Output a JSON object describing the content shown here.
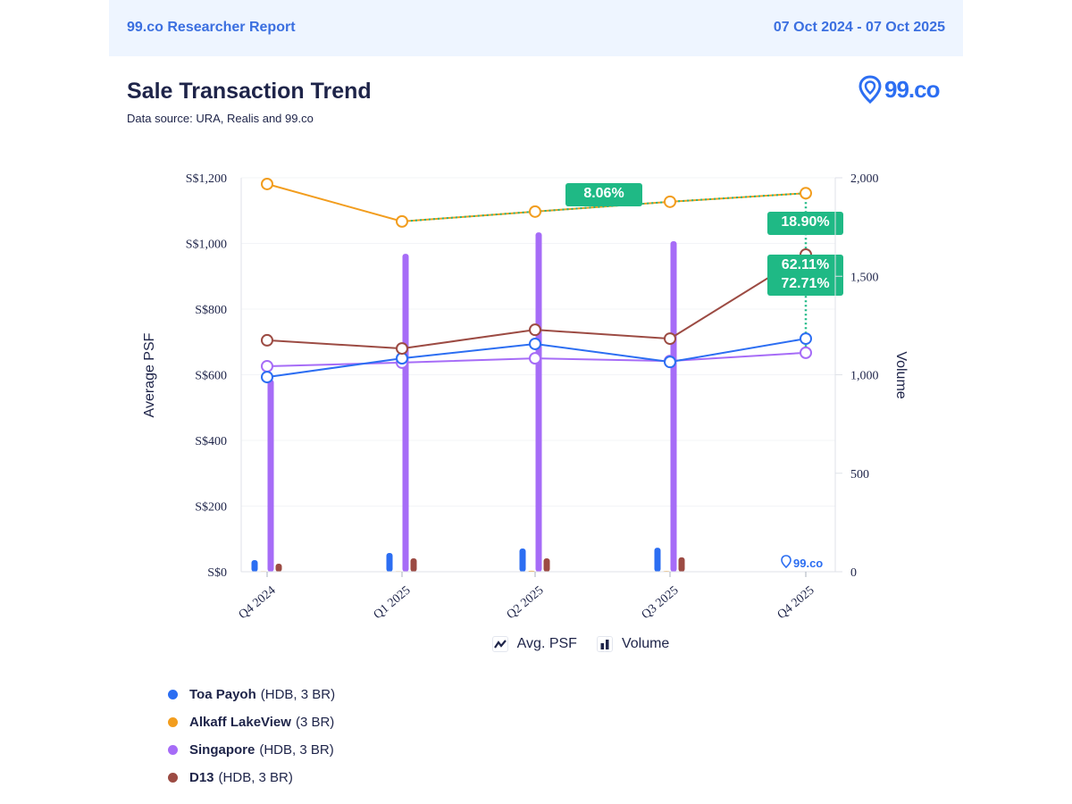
{
  "header": {
    "report_label": "99.co Researcher Report",
    "date_range": "07 Oct 2024 - 07 Oct 2025"
  },
  "title": "Sale Transaction Trend",
  "subtitle": "Data source: URA, Realis and 99.co",
  "logo_text": "99.co",
  "watermark_text": "99.co",
  "mode_legend": [
    {
      "icon": "line-chart-icon",
      "label": "Avg. PSF"
    },
    {
      "icon": "bar-chart-icon",
      "label": "Volume"
    }
  ],
  "series_legend": [
    {
      "name": "Toa Payoh",
      "detail": "(HDB, 3 BR)",
      "color": "#2c6ef2"
    },
    {
      "name": "Alkaff LakeView",
      "detail": "(3 BR)",
      "color": "#f29d1e"
    },
    {
      "name": "Singapore",
      "detail": "(HDB, 3 BR)",
      "color": "#a66cf7"
    },
    {
      "name": "D13",
      "detail": "(HDB, 3 BR)",
      "color": "#9c4b43"
    }
  ],
  "chart_data": {
    "type": "line+bar",
    "title": "Sale Transaction Trend",
    "categories": [
      "Q4 2024",
      "Q1 2025",
      "Q2 2025",
      "Q3 2025",
      "Q4 2025"
    ],
    "ylabel": "Average PSF",
    "y2label": "Volume",
    "ylim": [
      0,
      1200
    ],
    "y2lim": [
      0,
      2000
    ],
    "yticks": [
      "S$0",
      "S$200",
      "S$400",
      "S$600",
      "S$800",
      "S$1,000",
      "S$1,200"
    ],
    "yticks_values": [
      0,
      200,
      400,
      600,
      800,
      1000,
      1200
    ],
    "y2ticks": [
      "0",
      "500",
      "1,000",
      "1,500",
      "2,000"
    ],
    "y2ticks_values": [
      0,
      500,
      1000,
      1500,
      2000
    ],
    "grid": true,
    "psf_series": [
      {
        "name": "Toa Payoh",
        "color": "#2c6ef2",
        "values": [
          593,
          650,
          694,
          639,
          710
        ]
      },
      {
        "name": "Alkaff LakeView",
        "color": "#f29d1e",
        "values": [
          1181,
          1067,
          1097,
          1127,
          1153
        ]
      },
      {
        "name": "Singapore",
        "color": "#a66cf7",
        "values": [
          626,
          637,
          650,
          642,
          667
        ]
      },
      {
        "name": "D13",
        "color": "#9c4b43",
        "values": [
          705,
          680,
          737,
          710,
          966
        ]
      }
    ],
    "volume_series": [
      {
        "name": "Toa Payoh",
        "color": "#2c6ef2",
        "values": [
          59,
          95,
          118,
          122,
          0
        ]
      },
      {
        "name": "Alkaff LakeView",
        "color": "#f29d1e",
        "values": [
          3,
          3,
          5,
          4,
          0
        ]
      },
      {
        "name": "Singapore",
        "color": "#a66cf7",
        "values": [
          975,
          1614,
          1723,
          1678,
          0
        ]
      },
      {
        "name": "D13",
        "color": "#9c4b43",
        "values": [
          41,
          68,
          68,
          73,
          0
        ]
      }
    ],
    "annotations": [
      {
        "label": "8.06%",
        "type": "trend-growth",
        "from": "Q1 2025",
        "to": "Q4 2025",
        "series": "Alkaff LakeView"
      },
      {
        "label": "18.90%",
        "type": "spread",
        "at": "Q4 2025"
      },
      {
        "label": "62.11%",
        "type": "spread",
        "at": "Q4 2025"
      },
      {
        "label": "72.71%",
        "type": "spread",
        "at": "Q4 2025"
      }
    ],
    "annotation_color": "#1fb985"
  }
}
